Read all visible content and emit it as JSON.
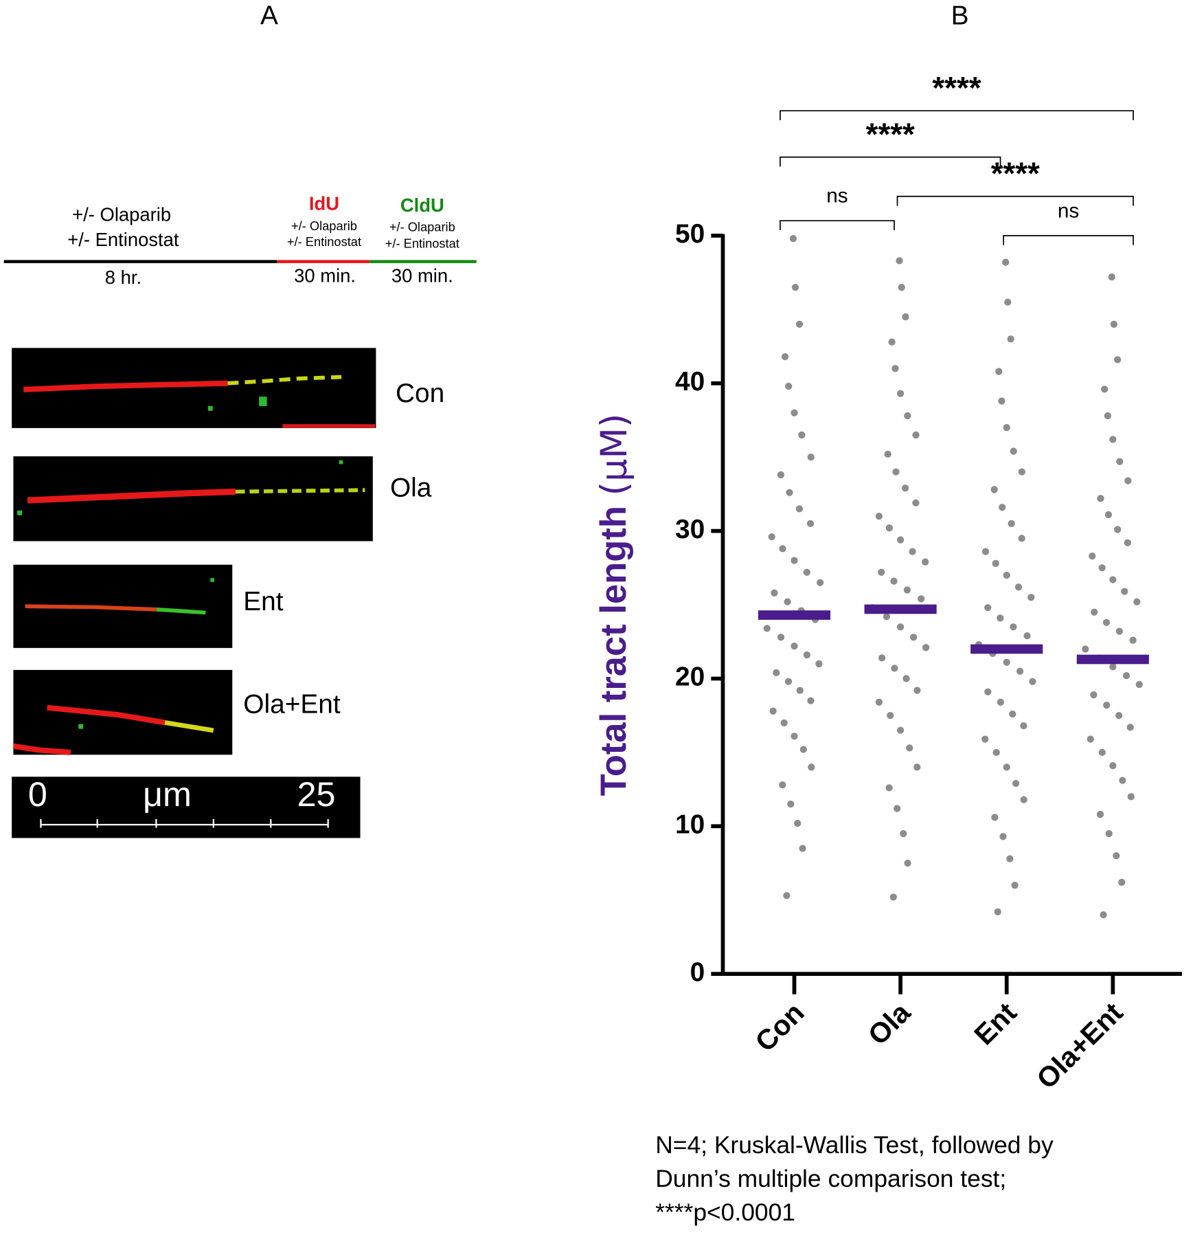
{
  "panel_a": {
    "label": "A",
    "timeline": {
      "pre_treatment": [
        "+/- Olaparib",
        "+/- Entinostat"
      ],
      "pre_duration": "8 hr.",
      "pulse1": {
        "name": "IdU",
        "treatment": [
          "+/- Olaparib",
          "+/- Entinostat"
        ],
        "duration": "30 min."
      },
      "pulse2": {
        "name": "CldU",
        "treatment": [
          "+/- Olaparib",
          "+/- Entinostat"
        ],
        "duration": "30 min."
      }
    },
    "images": [
      {
        "label": "Con"
      },
      {
        "label": "Ola"
      },
      {
        "label": "Ent"
      },
      {
        "label": "Ola+Ent"
      }
    ],
    "scale_bar": {
      "start": "0",
      "unit": "μm",
      "end": "25"
    }
  },
  "chart_data": {
    "type": "strip",
    "panel_label": "B",
    "ylabel": "Total tract length",
    "ylabel_unit": "(μM)",
    "categories": [
      "Con",
      "Ola",
      "Ent",
      "Ola+Ent"
    ],
    "values": [
      24.3,
      24.7,
      22.0,
      21.3
    ],
    "points": [
      [
        5.3,
        8.5,
        10.2,
        11.5,
        12.8,
        14,
        15.2,
        16.1,
        17,
        17.8,
        18.5,
        19.2,
        19.8,
        20.4,
        21,
        21.6,
        22.2,
        22.8,
        23.4,
        24,
        24.6,
        25.2,
        25.8,
        26.5,
        27.2,
        28,
        28.8,
        29.6,
        30.5,
        31.5,
        32.6,
        33.8,
        35,
        36.5,
        38,
        39.8,
        41.8,
        44,
        46.5,
        49.8
      ],
      [
        5.2,
        7.5,
        9.5,
        11.2,
        12.6,
        14,
        15.3,
        16.5,
        17.5,
        18.4,
        19.2,
        20,
        20.7,
        21.4,
        22.1,
        22.8,
        23.5,
        24.2,
        24.8,
        25.4,
        26,
        26.6,
        27.2,
        27.9,
        28.6,
        29.4,
        30.2,
        31,
        31.9,
        32.9,
        34,
        35.2,
        36.5,
        37.8,
        39.3,
        41,
        42.8,
        44.5,
        46.5,
        48.3
      ],
      [
        4.2,
        6,
        7.8,
        9.3,
        10.6,
        11.8,
        12.9,
        14,
        15,
        15.9,
        16.8,
        17.6,
        18.4,
        19.1,
        19.8,
        20.5,
        21.1,
        21.7,
        22.3,
        22.9,
        23.5,
        24.1,
        24.8,
        25.5,
        26.2,
        27,
        27.8,
        28.6,
        29.5,
        30.5,
        31.6,
        32.8,
        34,
        35.4,
        37,
        38.8,
        40.8,
        43,
        45.5,
        48.2
      ],
      [
        4,
        6.2,
        8,
        9.5,
        10.8,
        12,
        13.1,
        14.1,
        15,
        15.9,
        16.7,
        17.5,
        18.2,
        18.9,
        19.6,
        20.2,
        20.8,
        21.4,
        22,
        22.6,
        23.2,
        23.8,
        24.5,
        25.2,
        25.9,
        26.7,
        27.5,
        28.3,
        29.2,
        30.1,
        31.1,
        32.2,
        33.4,
        34.7,
        36.2,
        37.8,
        39.6,
        41.6,
        44,
        47.2
      ]
    ],
    "color": "#8c8c8c",
    "median_color": "#4a1c8c",
    "ylim": [
      0,
      50
    ],
    "yticks": [
      0,
      10,
      20,
      30,
      40,
      50
    ],
    "significance": [
      {
        "groups": [
          0,
          3
        ],
        "label": "****"
      },
      {
        "groups": [
          0,
          2
        ],
        "label": "****"
      },
      {
        "groups": [
          1,
          3
        ],
        "label": "****"
      },
      {
        "groups": [
          0,
          1
        ],
        "label": "ns"
      },
      {
        "groups": [
          2,
          3
        ],
        "label": "ns"
      }
    ],
    "footnote": [
      "N=4; Kruskal-Wallis Test, followed by",
      "Dunn’s multiple comparison test;",
      "****p<0.0001"
    ]
  }
}
